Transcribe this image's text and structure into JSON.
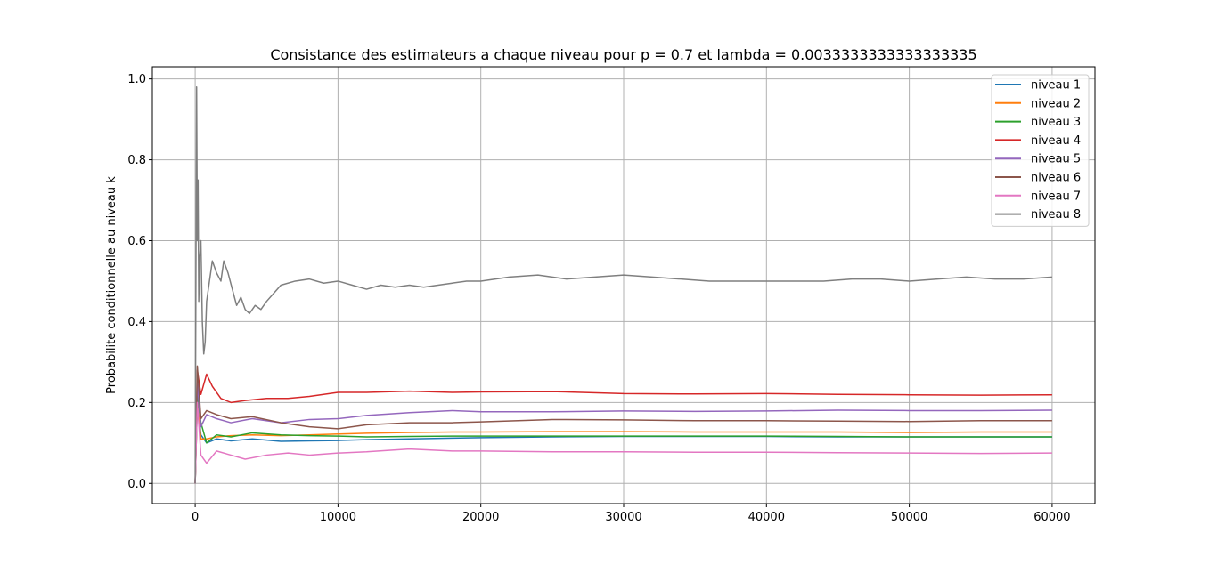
{
  "chart_data": {
    "type": "line",
    "title": "Consistance des estimateurs a chaque niveau pour p = 0.7 et lambda = 0.0033333333333333335",
    "xlabel": "",
    "ylabel": "Probabilite conditionnelle au niveau k",
    "xlim": [
      -3000,
      63000
    ],
    "ylim": [
      -0.05,
      1.03
    ],
    "xticks": [
      0,
      10000,
      20000,
      30000,
      40000,
      50000,
      60000
    ],
    "xtick_labels": [
      "0",
      "10000",
      "20000",
      "30000",
      "40000",
      "50000",
      "60000"
    ],
    "yticks": [
      0.0,
      0.2,
      0.4,
      0.6,
      0.8,
      1.0
    ],
    "ytick_labels": [
      "0.0",
      "0.2",
      "0.4",
      "0.6",
      "0.8",
      "1.0"
    ],
    "grid": true,
    "legend_position": "top-right",
    "series": [
      {
        "name": "niveau 1",
        "color": "#1f77b4",
        "x": [
          0,
          150,
          400,
          800,
          1500,
          2500,
          4000,
          6000,
          8000,
          10000,
          12000,
          15000,
          18000,
          20000,
          25000,
          30000,
          35000,
          40000,
          45000,
          50000,
          55000,
          60000
        ],
        "y": [
          0.0,
          0.2,
          0.12,
          0.1,
          0.11,
          0.105,
          0.11,
          0.104,
          0.105,
          0.106,
          0.108,
          0.11,
          0.112,
          0.113,
          0.115,
          0.116,
          0.116,
          0.116,
          0.115,
          0.115,
          0.115,
          0.115
        ]
      },
      {
        "name": "niveau 2",
        "color": "#ff7f0e",
        "x": [
          0,
          150,
          400,
          800,
          1500,
          2500,
          4000,
          6000,
          8000,
          10000,
          12000,
          15000,
          18000,
          20000,
          25000,
          30000,
          35000,
          40000,
          45000,
          50000,
          55000,
          60000
        ],
        "y": [
          0.0,
          0.2,
          0.11,
          0.11,
          0.115,
          0.118,
          0.12,
          0.118,
          0.12,
          0.122,
          0.124,
          0.126,
          0.127,
          0.127,
          0.128,
          0.128,
          0.127,
          0.127,
          0.127,
          0.126,
          0.127,
          0.127
        ]
      },
      {
        "name": "niveau 3",
        "color": "#2ca02c",
        "x": [
          0,
          150,
          400,
          800,
          1500,
          2500,
          4000,
          6000,
          8000,
          10000,
          12000,
          15000,
          18000,
          20000,
          25000,
          30000,
          35000,
          40000,
          45000,
          50000,
          55000,
          60000
        ],
        "y": [
          0.0,
          0.22,
          0.15,
          0.1,
          0.12,
          0.115,
          0.125,
          0.12,
          0.118,
          0.117,
          0.115,
          0.116,
          0.117,
          0.117,
          0.117,
          0.117,
          0.117,
          0.117,
          0.116,
          0.115,
          0.115,
          0.115
        ]
      },
      {
        "name": "niveau 4",
        "color": "#d62728",
        "x": [
          0,
          150,
          400,
          800,
          1200,
          1800,
          2500,
          3500,
          5000,
          6500,
          8000,
          10000,
          12000,
          15000,
          18000,
          20000,
          25000,
          30000,
          35000,
          40000,
          45000,
          50000,
          55000,
          60000
        ],
        "y": [
          0.0,
          0.28,
          0.22,
          0.27,
          0.24,
          0.21,
          0.2,
          0.205,
          0.21,
          0.21,
          0.215,
          0.225,
          0.225,
          0.228,
          0.225,
          0.226,
          0.227,
          0.222,
          0.221,
          0.222,
          0.22,
          0.219,
          0.218,
          0.219
        ]
      },
      {
        "name": "niveau 5",
        "color": "#9467bd",
        "x": [
          0,
          150,
          400,
          800,
          1500,
          2500,
          4000,
          6000,
          8000,
          10000,
          12000,
          15000,
          18000,
          20000,
          25000,
          30000,
          35000,
          40000,
          45000,
          50000,
          55000,
          60000
        ],
        "y": [
          0.0,
          0.25,
          0.14,
          0.17,
          0.16,
          0.15,
          0.16,
          0.15,
          0.158,
          0.16,
          0.168,
          0.175,
          0.18,
          0.177,
          0.177,
          0.179,
          0.178,
          0.179,
          0.181,
          0.18,
          0.18,
          0.181
        ]
      },
      {
        "name": "niveau 6",
        "color": "#8c564b",
        "x": [
          0,
          150,
          400,
          800,
          1500,
          2500,
          4000,
          6000,
          8000,
          10000,
          12000,
          15000,
          18000,
          20000,
          25000,
          30000,
          35000,
          40000,
          45000,
          50000,
          55000,
          60000
        ],
        "y": [
          0.0,
          0.29,
          0.16,
          0.18,
          0.17,
          0.16,
          0.165,
          0.15,
          0.14,
          0.135,
          0.145,
          0.15,
          0.15,
          0.152,
          0.158,
          0.157,
          0.155,
          0.155,
          0.154,
          0.153,
          0.155,
          0.155
        ]
      },
      {
        "name": "niveau 7",
        "color": "#e377c2",
        "x": [
          0,
          150,
          400,
          800,
          1500,
          2500,
          3500,
          5000,
          6500,
          8000,
          10000,
          12000,
          15000,
          18000,
          20000,
          25000,
          30000,
          35000,
          40000,
          45000,
          50000,
          55000,
          60000
        ],
        "y": [
          0.0,
          0.2,
          0.07,
          0.05,
          0.08,
          0.07,
          0.06,
          0.07,
          0.075,
          0.07,
          0.075,
          0.078,
          0.085,
          0.08,
          0.08,
          0.078,
          0.078,
          0.077,
          0.077,
          0.076,
          0.075,
          0.074,
          0.075
        ]
      },
      {
        "name": "niveau 8",
        "color": "#7f7f7f",
        "x": [
          0,
          50,
          100,
          150,
          200,
          250,
          300,
          400,
          500,
          600,
          700,
          800,
          1000,
          1200,
          1500,
          1800,
          2000,
          2300,
          2600,
          2900,
          3200,
          3500,
          3800,
          4200,
          4600,
          5000,
          5500,
          6000,
          7000,
          8000,
          9000,
          10000,
          11000,
          12000,
          13000,
          14000,
          15000,
          16000,
          17000,
          18000,
          19000,
          20000,
          22000,
          24000,
          26000,
          28000,
          30000,
          32000,
          34000,
          36000,
          38000,
          40000,
          42000,
          44000,
          46000,
          48000,
          50000,
          52000,
          54000,
          56000,
          58000,
          60000
        ],
        "y": [
          0.0,
          0.5,
          0.98,
          0.6,
          0.75,
          0.45,
          0.55,
          0.6,
          0.4,
          0.32,
          0.35,
          0.45,
          0.5,
          0.55,
          0.52,
          0.5,
          0.55,
          0.52,
          0.48,
          0.44,
          0.46,
          0.43,
          0.42,
          0.44,
          0.43,
          0.45,
          0.47,
          0.49,
          0.5,
          0.505,
          0.495,
          0.5,
          0.49,
          0.48,
          0.49,
          0.485,
          0.49,
          0.485,
          0.49,
          0.495,
          0.5,
          0.5,
          0.51,
          0.515,
          0.505,
          0.51,
          0.515,
          0.51,
          0.505,
          0.5,
          0.5,
          0.5,
          0.5,
          0.5,
          0.505,
          0.505,
          0.5,
          0.505,
          0.51,
          0.505,
          0.505,
          0.51
        ]
      }
    ]
  }
}
